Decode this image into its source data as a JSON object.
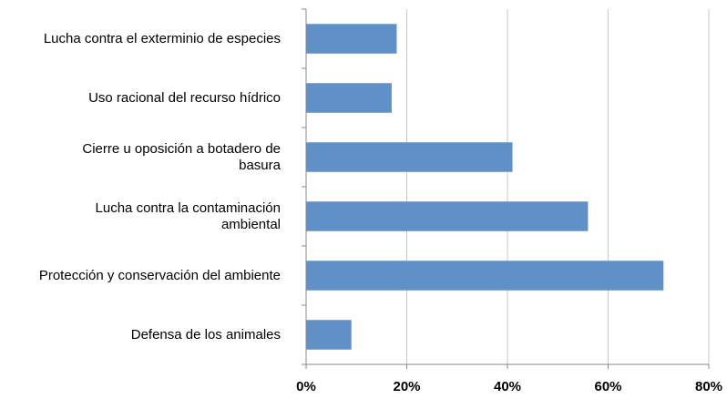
{
  "chart_data": {
    "type": "barh",
    "categories": [
      "Lucha contra el exterminio de especies",
      "Uso racional del recurso hídrico",
      "Cierre u oposición a botadero de\nbasura",
      "Lucha contra la contaminación\nambiental",
      "Protección y conservación del ambiente",
      "Defensa de los animales"
    ],
    "values": [
      18,
      17,
      41,
      56,
      71,
      9
    ],
    "color": "#6090c8",
    "xlim": [
      0,
      80
    ],
    "xticks": [
      {
        "value": 0,
        "label": "0%"
      },
      {
        "value": 20,
        "label": "20%"
      },
      {
        "value": 40,
        "label": "40%"
      },
      {
        "value": 60,
        "label": "60%"
      },
      {
        "value": 80,
        "label": "80%"
      }
    ],
    "grid": true
  }
}
